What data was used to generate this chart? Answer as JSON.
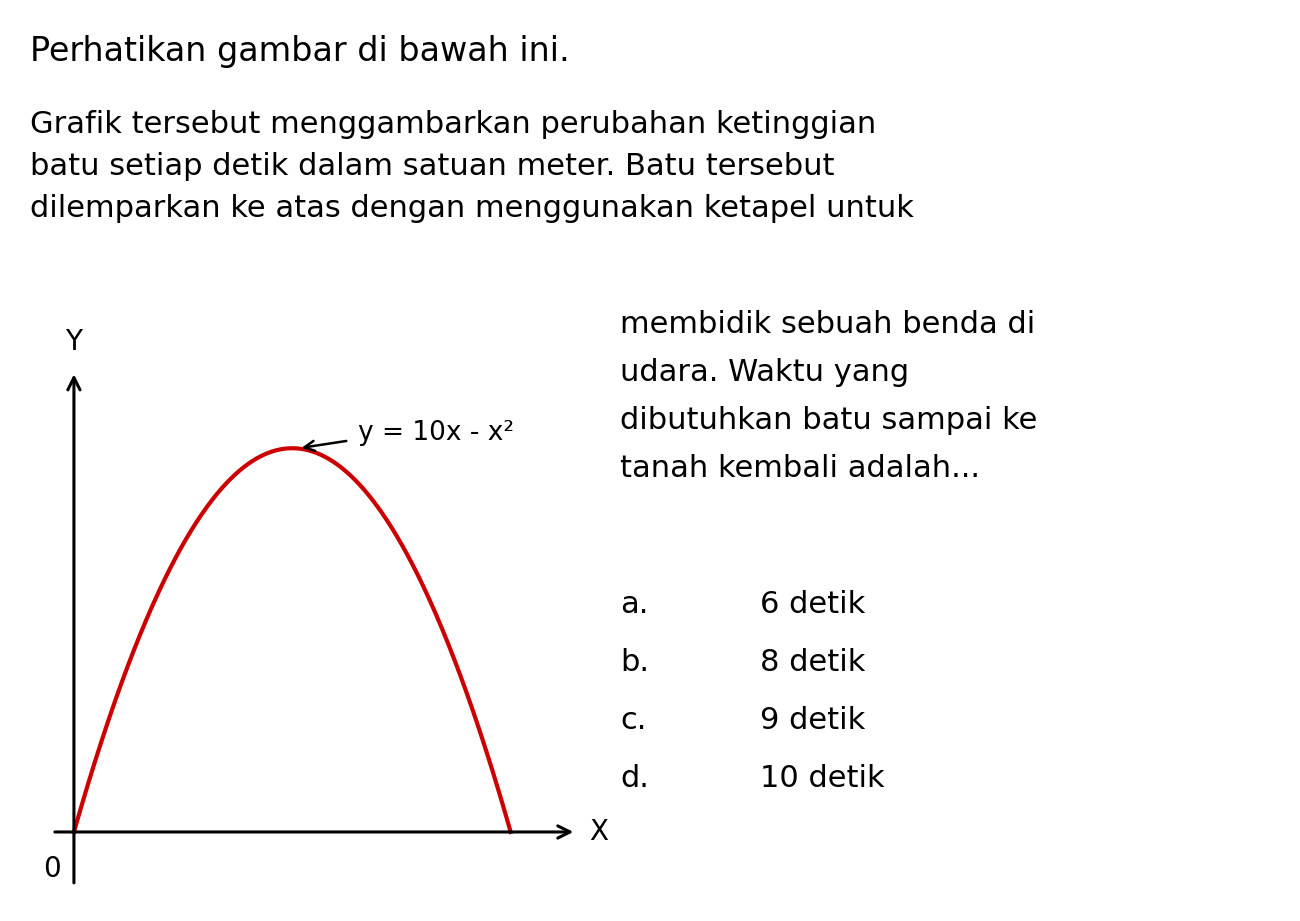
{
  "background_color": "#ffffff",
  "title_text": "Perhatikan gambar di bawah ini.",
  "para_line1": "Grafik tersebut menggambarkan perubahan ketinggian",
  "para_line2": "batu setiap detik dalam satuan meter. Batu tersebut",
  "para_line3": "dilemparkan ke atas dengan menggunakan ketapel untuk",
  "right_para": "membidik sebuah benda di\nudara. Waktu yang\ndibutuhkan batu sampai ke\ntanah kembali adalah...",
  "opt_a": "a.",
  "opt_b": "b.",
  "opt_c": "c.",
  "opt_d": "d.",
  "opt_a_val": "6 detik",
  "opt_b_val": "8 detik",
  "opt_c_val": "9 detik",
  "opt_d_val": "10 detik",
  "curve_color": "#cc0000",
  "curve_linewidth": 3.0,
  "equation_label": "y = 10x - x²",
  "x_label": "X",
  "y_label": "Y",
  "origin_label": "0",
  "font_size_title": 24,
  "font_size_body": 22,
  "font_size_eq": 19,
  "font_size_axis": 20
}
